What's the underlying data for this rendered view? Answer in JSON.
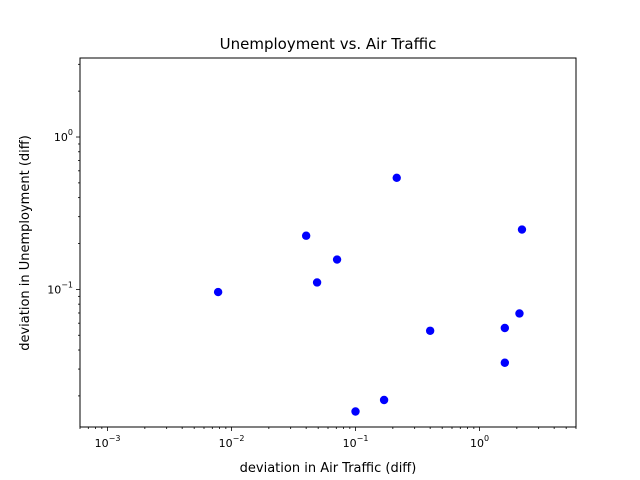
{
  "chart_data": {
    "type": "scatter",
    "title": "Unemployment vs. Air Traffic",
    "xlabel": "deviation in Air Traffic (diff)",
    "ylabel": "deviation in Unemployment (diff)",
    "xscale": "log",
    "yscale": "log",
    "xlim": [
      0.0006,
      6.0
    ],
    "ylim": [
      0.0125,
      3.3
    ],
    "grid": false,
    "marker_color": "#0000ff",
    "x_ticks": [
      {
        "value": 0.001,
        "label_base": "10",
        "label_exp": "−3"
      },
      {
        "value": 0.01,
        "label_base": "10",
        "label_exp": "−2"
      },
      {
        "value": 0.1,
        "label_base": "10",
        "label_exp": "−1"
      },
      {
        "value": 1,
        "label_base": "10",
        "label_exp": "0"
      }
    ],
    "y_ticks": [
      {
        "value": 0.1,
        "label_base": "10",
        "label_exp": "−1"
      },
      {
        "value": 1,
        "label_base": "10",
        "label_exp": "0"
      }
    ],
    "points": [
      {
        "x": 0.0078,
        "y": 0.096
      },
      {
        "x": 0.04,
        "y": 0.225
      },
      {
        "x": 0.049,
        "y": 0.111
      },
      {
        "x": 0.071,
        "y": 0.157
      },
      {
        "x": 0.1,
        "y": 0.0158
      },
      {
        "x": 0.17,
        "y": 0.0188
      },
      {
        "x": 0.215,
        "y": 0.54
      },
      {
        "x": 0.4,
        "y": 0.0535
      },
      {
        "x": 1.6,
        "y": 0.0558
      },
      {
        "x": 1.6,
        "y": 0.033
      },
      {
        "x": 2.1,
        "y": 0.0695
      },
      {
        "x": 2.2,
        "y": 0.247
      }
    ]
  }
}
